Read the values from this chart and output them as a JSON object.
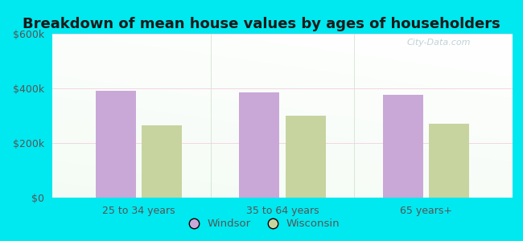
{
  "title": "Breakdown of mean house values by ages of householders",
  "categories": [
    "25 to 34 years",
    "35 to 64 years",
    "65 years+"
  ],
  "windsor_values": [
    390000,
    385000,
    375000
  ],
  "wisconsin_values": [
    265000,
    300000,
    270000
  ],
  "windsor_color": "#c9a8d8",
  "wisconsin_color": "#c8d4a0",
  "ylim": [
    0,
    600000
  ],
  "yticks": [
    0,
    200000,
    400000,
    600000
  ],
  "ytick_labels": [
    "$0",
    "$200k",
    "$400k",
    "$600k"
  ],
  "legend_labels": [
    "Windsor",
    "Wisconsin"
  ],
  "background_outer": "#00e8f0",
  "title_fontsize": 13,
  "tick_fontsize": 9,
  "tick_color": "#555555",
  "title_color": "#1a1a1a",
  "watermark_text": "City-Data.com",
  "bar_width": 0.28,
  "bar_gap": 0.04
}
